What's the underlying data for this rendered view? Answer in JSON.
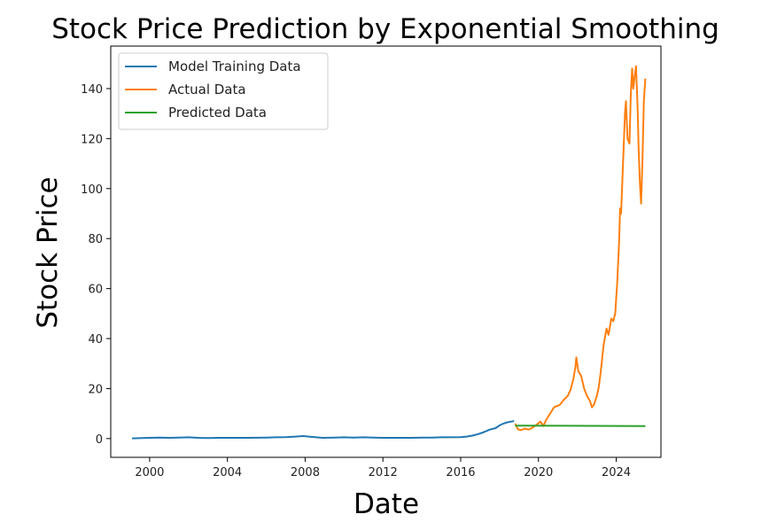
{
  "chart_data": {
    "type": "line",
    "title": "Stock Price Prediction by Exponential Smoothing",
    "xlabel": "Date",
    "ylabel": "Stock Price",
    "xlim": [
      1998.0,
      2026.3
    ],
    "ylim": [
      -7.5,
      157
    ],
    "x_ticks": [
      2000,
      2004,
      2008,
      2012,
      2016,
      2020,
      2024
    ],
    "y_ticks": [
      0,
      20,
      40,
      60,
      80,
      100,
      120,
      140
    ],
    "grid": false,
    "legend_position": "top-left",
    "series": [
      {
        "name": "Model Training Data",
        "color": "#1f77b4",
        "points": [
          [
            1999.1,
            0.1
          ],
          [
            1999.6,
            0.2
          ],
          [
            2000.0,
            0.3
          ],
          [
            2000.5,
            0.4
          ],
          [
            2001.0,
            0.3
          ],
          [
            2001.5,
            0.4
          ],
          [
            2002.0,
            0.5
          ],
          [
            2002.5,
            0.3
          ],
          [
            2003.0,
            0.2
          ],
          [
            2003.5,
            0.3
          ],
          [
            2004.0,
            0.3
          ],
          [
            2005.0,
            0.3
          ],
          [
            2006.0,
            0.4
          ],
          [
            2006.5,
            0.5
          ],
          [
            2007.0,
            0.6
          ],
          [
            2007.5,
            0.8
          ],
          [
            2007.9,
            1.0
          ],
          [
            2008.3,
            0.7
          ],
          [
            2008.9,
            0.3
          ],
          [
            2009.5,
            0.4
          ],
          [
            2010.0,
            0.5
          ],
          [
            2010.5,
            0.4
          ],
          [
            2011.0,
            0.5
          ],
          [
            2011.5,
            0.4
          ],
          [
            2012.0,
            0.3
          ],
          [
            2012.5,
            0.3
          ],
          [
            2013.0,
            0.3
          ],
          [
            2013.5,
            0.3
          ],
          [
            2014.0,
            0.4
          ],
          [
            2014.5,
            0.4
          ],
          [
            2015.0,
            0.5
          ],
          [
            2015.5,
            0.5
          ],
          [
            2016.0,
            0.6
          ],
          [
            2016.3,
            0.8
          ],
          [
            2016.6,
            1.2
          ],
          [
            2016.9,
            1.8
          ],
          [
            2017.2,
            2.6
          ],
          [
            2017.5,
            3.6
          ],
          [
            2017.8,
            4.2
          ],
          [
            2018.0,
            5.3
          ],
          [
            2018.2,
            6.0
          ],
          [
            2018.4,
            6.5
          ],
          [
            2018.6,
            6.8
          ],
          [
            2018.75,
            7.0
          ]
        ]
      },
      {
        "name": "Actual Data",
        "color": "#ff7f0e",
        "points": [
          [
            2018.8,
            6.0
          ],
          [
            2018.95,
            3.7
          ],
          [
            2019.1,
            3.4
          ],
          [
            2019.3,
            4.0
          ],
          [
            2019.5,
            3.6
          ],
          [
            2019.7,
            4.4
          ],
          [
            2019.9,
            5.5
          ],
          [
            2020.1,
            6.8
          ],
          [
            2020.25,
            5.0
          ],
          [
            2020.4,
            7.5
          ],
          [
            2020.6,
            10.0
          ],
          [
            2020.8,
            12.5
          ],
          [
            2020.95,
            13.0
          ],
          [
            2021.1,
            13.5
          ],
          [
            2021.3,
            15.5
          ],
          [
            2021.5,
            17.0
          ],
          [
            2021.65,
            19.5
          ],
          [
            2021.8,
            24.0
          ],
          [
            2021.9,
            28.5
          ],
          [
            2021.95,
            32.5
          ],
          [
            2022.05,
            27.0
          ],
          [
            2022.2,
            25.0
          ],
          [
            2022.35,
            20.0
          ],
          [
            2022.5,
            17.0
          ],
          [
            2022.65,
            15.0
          ],
          [
            2022.75,
            12.5
          ],
          [
            2022.85,
            13.5
          ],
          [
            2023.0,
            17.0
          ],
          [
            2023.1,
            20.5
          ],
          [
            2023.2,
            26.5
          ],
          [
            2023.35,
            37.5
          ],
          [
            2023.5,
            44.0
          ],
          [
            2023.6,
            41.5
          ],
          [
            2023.75,
            48.0
          ],
          [
            2023.85,
            47.0
          ],
          [
            2023.95,
            50.0
          ],
          [
            2024.05,
            62.0
          ],
          [
            2024.15,
            79.0
          ],
          [
            2024.2,
            92.0
          ],
          [
            2024.25,
            90.0
          ],
          [
            2024.35,
            110.0
          ],
          [
            2024.45,
            130.0
          ],
          [
            2024.5,
            135.0
          ],
          [
            2024.58,
            120.0
          ],
          [
            2024.68,
            118.0
          ],
          [
            2024.75,
            138.0
          ],
          [
            2024.82,
            148.0
          ],
          [
            2024.88,
            140.0
          ],
          [
            2024.95,
            145.0
          ],
          [
            2025.02,
            149.0
          ],
          [
            2025.1,
            132.0
          ],
          [
            2025.15,
            116.0
          ],
          [
            2025.22,
            102.0
          ],
          [
            2025.28,
            94.0
          ],
          [
            2025.35,
            112.0
          ],
          [
            2025.42,
            135.0
          ],
          [
            2025.5,
            144.0
          ]
        ]
      },
      {
        "name": "Predicted Data",
        "color": "#2ca02c",
        "points": [
          [
            2018.8,
            5.2
          ],
          [
            2025.5,
            5.0
          ]
        ]
      }
    ]
  }
}
